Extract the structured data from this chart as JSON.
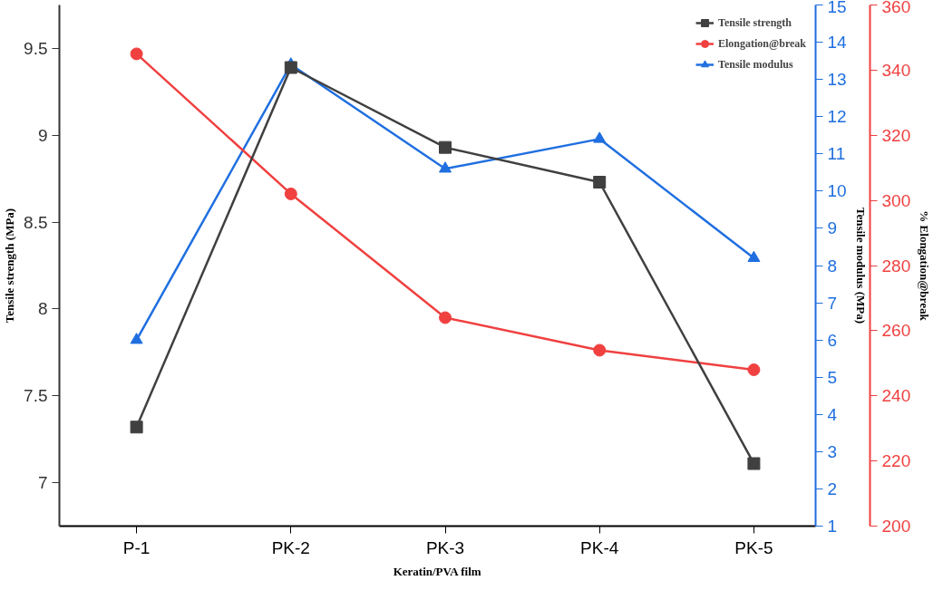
{
  "chart_data": {
    "type": "line",
    "xlabel": "Keratin/PVA film",
    "ylabel": "Tensile strength (MPa)",
    "y2label": "Tensile modulus (MPa)",
    "y3label": "% Elongation@break",
    "categories": [
      "P-1",
      "PK-2",
      "PK-3",
      "PK-4",
      "PK-5"
    ],
    "series": [
      {
        "name": "Tensile strength",
        "color": "#404040",
        "marker": "square",
        "values": [
          7.32,
          9.39,
          8.93,
          8.73,
          7.11
        ]
      },
      {
        "name": "Elongation@break",
        "color": "#f04040",
        "marker": "circle",
        "axis": "y3",
        "values": [
          345,
          302,
          264,
          254,
          248
        ]
      },
      {
        "name": "Tensile modulus",
        "color": "#1f6fe0",
        "marker": "triangle",
        "axis": "y2",
        "values": [
          6.0,
          13.4,
          10.6,
          11.4,
          8.2
        ]
      }
    ],
    "ylim": [
      6.75,
      9.75
    ],
    "yticks": [
      7.0,
      7.5,
      8.0,
      8.5,
      9.0,
      9.5
    ],
    "y2lim": [
      1,
      15
    ],
    "y2ticks": [
      1,
      2,
      3,
      4,
      5,
      6,
      7,
      8,
      9,
      10,
      11,
      12,
      13,
      14,
      15
    ],
    "y3lim": [
      200,
      360
    ],
    "y3ticks": [
      200,
      220,
      240,
      260,
      280,
      300,
      320,
      340,
      360
    ],
    "legend": "top right",
    "grid": false,
    "line_style": "solid"
  }
}
